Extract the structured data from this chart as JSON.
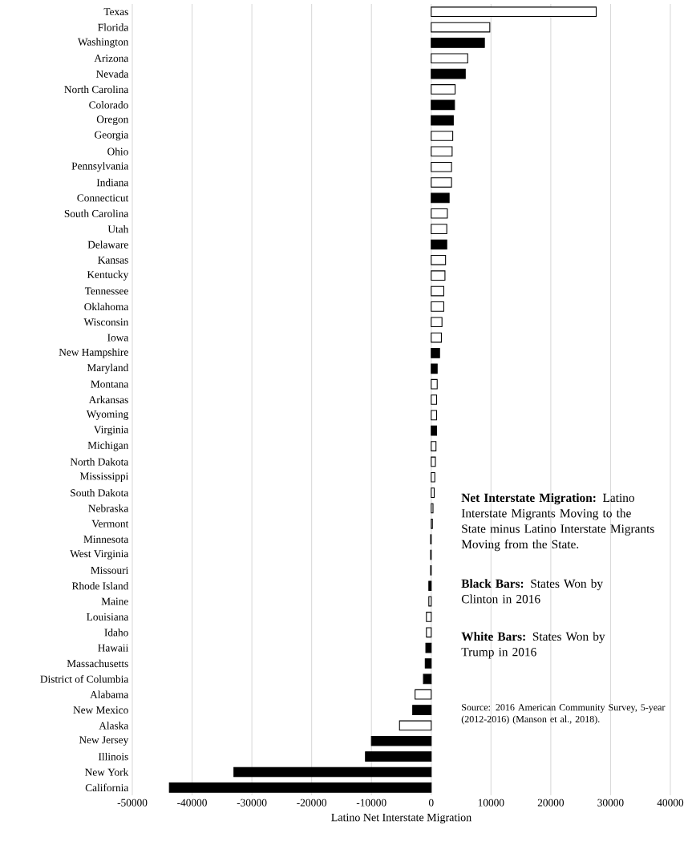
{
  "chart_data": {
    "type": "bar",
    "orientation": "horizontal",
    "xlabel": "Latino Net Interstate Migration",
    "categories": [
      "Texas",
      "Florida",
      "Washington",
      "Arizona",
      "Nevada",
      "North Carolina",
      "Colorado",
      "Oregon",
      "Georgia",
      "Ohio",
      "Pennsylvania",
      "Indiana",
      "Connecticut",
      "South Carolina",
      "Utah",
      "Delaware",
      "Kansas",
      "Kentucky",
      "Tennessee",
      "Oklahoma",
      "Wisconsin",
      "Iowa",
      "New Hampshire",
      "Maryland",
      "Montana",
      "Arkansas",
      "Wyoming",
      "Virginia",
      "Michigan",
      "North Dakota",
      "Mississippi",
      "South Dakota",
      "Nebraska",
      "Vermont",
      "Minnesota",
      "West Virginia",
      "Missouri",
      "Rhode Island",
      "Maine",
      "Louisiana",
      "Idaho",
      "Hawaii",
      "Massachusetts",
      "District of Columbia",
      "Alabama",
      "New Mexico",
      "Alaska",
      "New Jersey",
      "Illinois",
      "New York",
      "California"
    ],
    "values": [
      27600,
      9800,
      8900,
      6100,
      5700,
      4000,
      3900,
      3700,
      3600,
      3500,
      3400,
      3400,
      3000,
      2700,
      2600,
      2600,
      2400,
      2300,
      2100,
      2100,
      1800,
      1700,
      1400,
      1000,
      1000,
      900,
      900,
      900,
      800,
      700,
      600,
      500,
      300,
      200,
      -100,
      -100,
      -100,
      -400,
      -400,
      -800,
      -800,
      -900,
      -1000,
      -1300,
      -2700,
      -3100,
      -5300,
      -10000,
      -11000,
      -33000,
      -43800
    ],
    "colors": [
      "#ffffff",
      "#ffffff",
      "#000000",
      "#ffffff",
      "#000000",
      "#ffffff",
      "#000000",
      "#000000",
      "#ffffff",
      "#ffffff",
      "#ffffff",
      "#ffffff",
      "#000000",
      "#ffffff",
      "#ffffff",
      "#000000",
      "#ffffff",
      "#ffffff",
      "#ffffff",
      "#ffffff",
      "#ffffff",
      "#ffffff",
      "#000000",
      "#000000",
      "#ffffff",
      "#ffffff",
      "#ffffff",
      "#000000",
      "#ffffff",
      "#ffffff",
      "#ffffff",
      "#ffffff",
      "#ffffff",
      "#ffffff",
      "#000000",
      "#ffffff",
      "#ffffff",
      "#000000",
      "#ffffff",
      "#ffffff",
      "#ffffff",
      "#000000",
      "#000000",
      "#000000",
      "#ffffff",
      "#000000",
      "#ffffff",
      "#000000",
      "#000000",
      "#000000",
      "#000000"
    ],
    "xlim": [
      -50000,
      40000
    ],
    "xticks": [
      -50000,
      -40000,
      -30000,
      -20000,
      -10000,
      0,
      10000,
      20000,
      30000,
      40000
    ],
    "grid": "x",
    "annotations": [
      "**Net Interstate Migration:**  Latino Interstate Migrants Moving to the State minus Latino Interstate Migrants Moving from the State.",
      "**Black Bars:** States Won by Clinton in 2016",
      "**White Bars:** States Won by Trump in 2016",
      "Source: 2016 American Community Survey, 5-year (2012-2016) (Manson et al., 2018)."
    ]
  }
}
